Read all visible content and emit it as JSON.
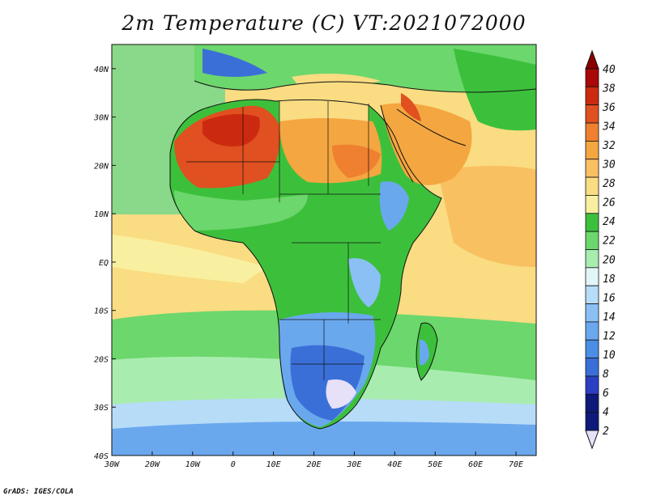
{
  "title": "2m Temperature (C) VT:2021072000",
  "credit": "GrADS: IGES/COLA",
  "map": {
    "lon_range": [
      -30,
      75
    ],
    "lat_range": [
      -40,
      45
    ],
    "x_ticks": [
      "30W",
      "20W",
      "10W",
      "0",
      "10E",
      "20E",
      "30E",
      "40E",
      "50E",
      "60E",
      "70E"
    ],
    "y_ticks": [
      "40S",
      "30S",
      "20S",
      "10S",
      "EQ",
      "10N",
      "20N",
      "30N",
      "40N"
    ]
  },
  "colorbar": {
    "labels": [
      "2",
      "4",
      "6",
      "8",
      "10",
      "12",
      "14",
      "16",
      "18",
      "20",
      "22",
      "24",
      "26",
      "28",
      "30",
      "32",
      "34",
      "36",
      "38",
      "40"
    ],
    "colors": [
      "#e6e0f8",
      "#0d1a7a",
      "#2b3fc4",
      "#3b6fd8",
      "#4a8ee6",
      "#6aa8ee",
      "#8ac0f4",
      "#b6dcf8",
      "#e2f6f8",
      "#a9ecb0",
      "#6cd76c",
      "#3cc03c",
      "#f8f0a0",
      "#fadc82",
      "#f8c060",
      "#f4a640",
      "#ee8030",
      "#e05020",
      "#cc2a10",
      "#a80808",
      "#8a0000"
    ]
  }
}
